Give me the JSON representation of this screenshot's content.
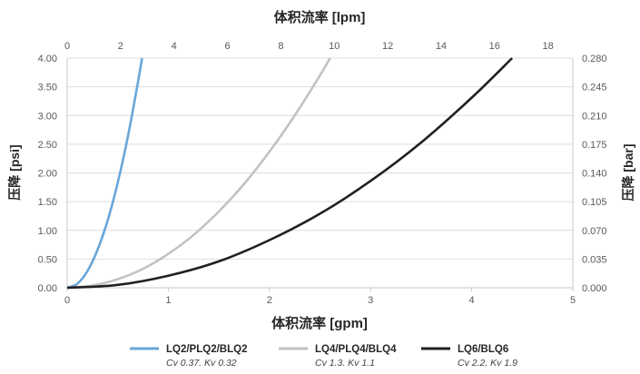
{
  "chart_data": {
    "type": "line",
    "xlabel": "体积流率 [gpm]",
    "x2label": "体积流率 [lpm]",
    "ylabel": "压降 [psi]",
    "y2label": "压降 [bar]",
    "xlim": [
      0,
      5
    ],
    "x2lim": [
      0,
      18.93
    ],
    "ylim": [
      0,
      4
    ],
    "y2lim": [
      0,
      0.28
    ],
    "x_ticks": [
      "0",
      "1",
      "2",
      "3",
      "4",
      "5"
    ],
    "x2_ticks": [
      "0",
      "2",
      "4",
      "6",
      "8",
      "10",
      "12",
      "14",
      "16",
      "18"
    ],
    "y_ticks": [
      "0.00",
      "0.50",
      "1.00",
      "1.50",
      "2.00",
      "2.50",
      "3.00",
      "3.50",
      "4.00"
    ],
    "y2_ticks": [
      "0.000",
      "0.035",
      "0.070",
      "0.105",
      "0.140",
      "0.175",
      "0.210",
      "0.245",
      "0.280"
    ],
    "grid": "horizontal",
    "legend_position": "bottom",
    "series": [
      {
        "name": "LQ2/PLQ2/BLQ2",
        "legend_note": "Cv 0.37. Kv 0.32",
        "color": "#6aa6d8",
        "x": [
          0,
          0.1,
          0.2,
          0.3,
          0.4,
          0.5,
          0.6,
          0.7,
          0.74
        ],
        "y": [
          0,
          0.07,
          0.29,
          0.66,
          1.17,
          1.83,
          2.63,
          3.58,
          4.0
        ]
      },
      {
        "name": "LQ4/PLQ4/BLQ4",
        "legend_note": "Cv 1.3. Kv 1.1",
        "color": "#c2c2c2",
        "x": [
          0,
          0.25,
          0.5,
          0.75,
          1.0,
          1.25,
          1.5,
          1.75,
          2.0,
          2.25,
          2.5,
          2.6
        ],
        "y": [
          0,
          0.04,
          0.15,
          0.33,
          0.59,
          0.92,
          1.33,
          1.81,
          2.37,
          3.0,
          3.7,
          4.0
        ]
      },
      {
        "name": "LQ6/BLQ6",
        "legend_note": "Cv 2.2. Kv 1.9",
        "color": "#231f20",
        "x": [
          0,
          0.5,
          1.0,
          1.5,
          2.0,
          2.5,
          3.0,
          3.5,
          4.0,
          4.4
        ],
        "y": [
          0,
          0.05,
          0.21,
          0.46,
          0.83,
          1.29,
          1.86,
          2.53,
          3.31,
          4.0
        ]
      }
    ]
  }
}
